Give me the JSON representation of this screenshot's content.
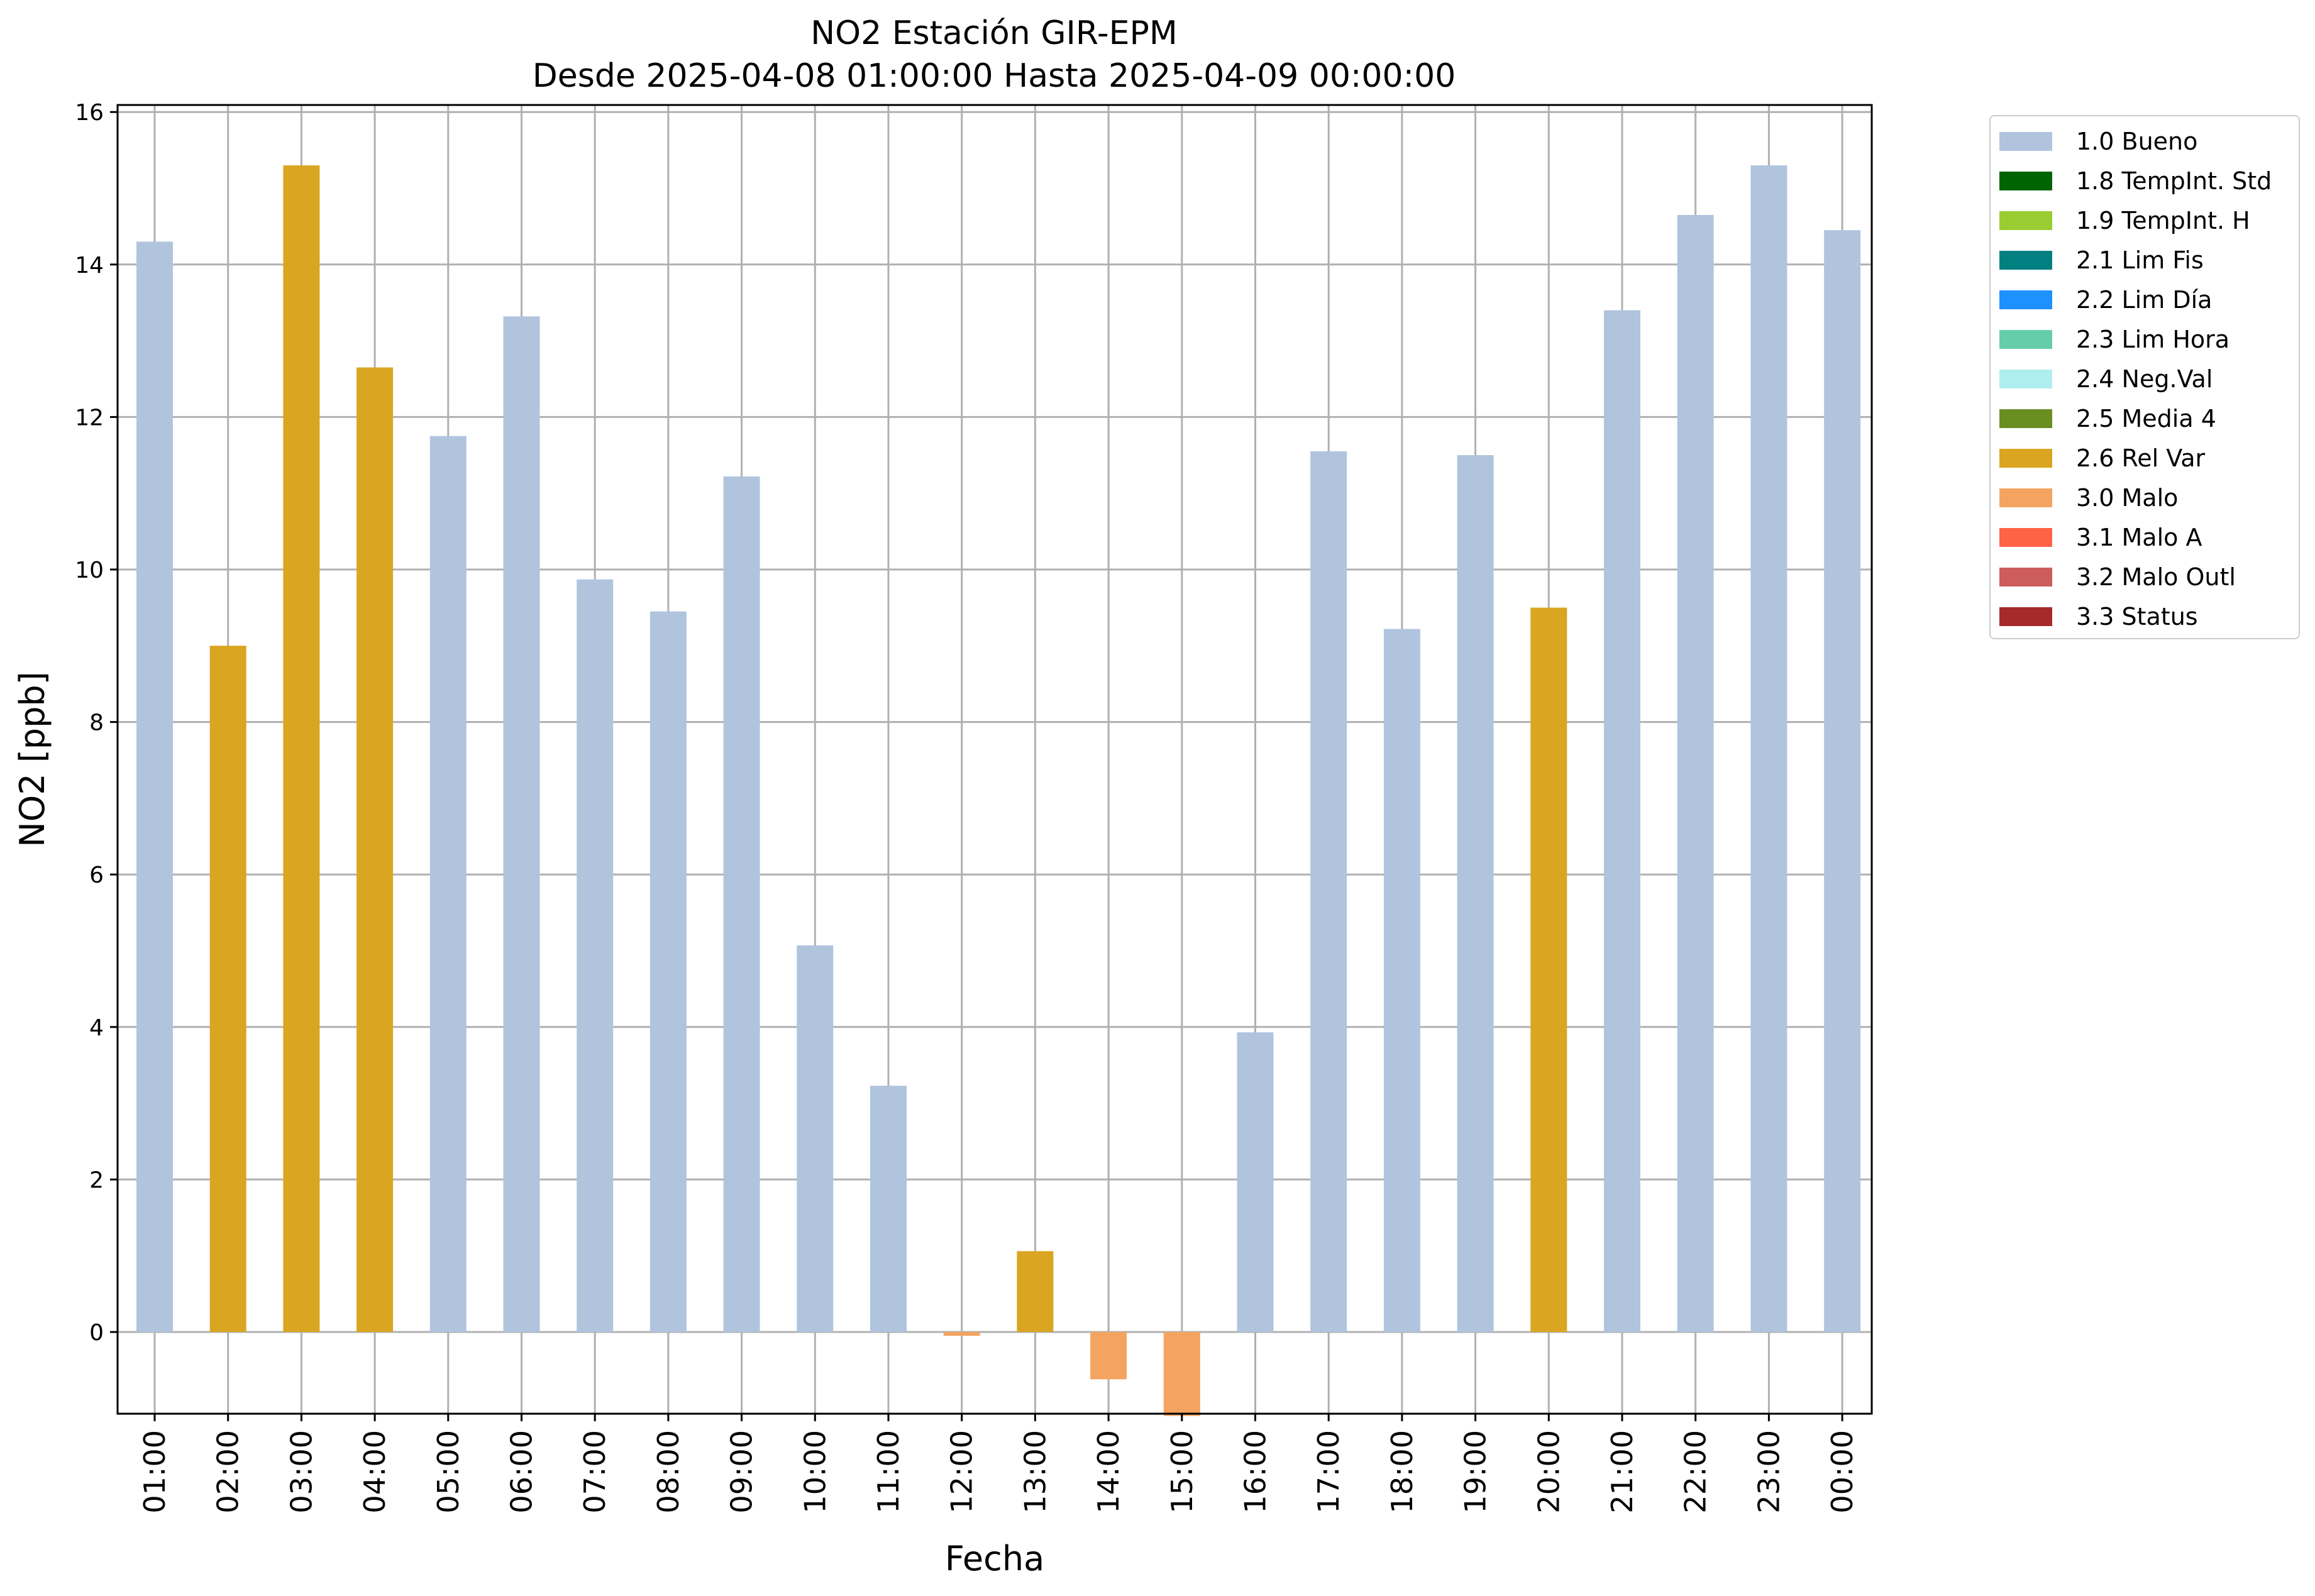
{
  "chart_data": {
    "type": "bar",
    "title": "NO2 Estación GIR-EPM",
    "subtitle": "Desde 2025-04-08 01:00:00 Hasta 2025-04-09 00:00:00",
    "xlabel": "Fecha",
    "ylabel": "NO2 [ppb]",
    "ylim": [
      -1.1,
      16.15
    ],
    "yticks": [
      0,
      2,
      4,
      6,
      8,
      10,
      12,
      14,
      16
    ],
    "grid": true,
    "legend_position": "outside-right",
    "categories": [
      "01:00",
      "02:00",
      "03:00",
      "04:00",
      "05:00",
      "06:00",
      "07:00",
      "08:00",
      "09:00",
      "10:00",
      "11:00",
      "12:00",
      "13:00",
      "14:00",
      "15:00",
      "16:00",
      "17:00",
      "18:00",
      "19:00",
      "20:00",
      "21:00",
      "22:00",
      "23:00",
      "00:00"
    ],
    "values": [
      14.3,
      9.0,
      15.3,
      12.65,
      11.75,
      13.32,
      9.87,
      9.45,
      11.22,
      5.07,
      3.23,
      -0.05,
      1.06,
      -0.62,
      -1.1,
      3.93,
      11.55,
      9.22,
      11.5,
      9.5,
      13.4,
      14.65,
      15.3,
      14.45
    ],
    "flags": [
      "1.0 Bueno",
      "2.6 Rel Var",
      "2.6 Rel Var",
      "2.6 Rel Var",
      "1.0 Bueno",
      "1.0 Bueno",
      "1.0 Bueno",
      "1.0 Bueno",
      "1.0 Bueno",
      "1.0 Bueno",
      "1.0 Bueno",
      "3.0 Malo",
      "2.6 Rel Var",
      "3.0 Malo",
      "3.0 Malo",
      "1.0 Bueno",
      "1.0 Bueno",
      "1.0 Bueno",
      "1.0 Bueno",
      "2.6 Rel Var",
      "1.0 Bueno",
      "1.0 Bueno",
      "1.0 Bueno",
      "1.0 Bueno"
    ],
    "legend": [
      {
        "label": "1.0 Bueno",
        "color": "#b0c4de"
      },
      {
        "label": "1.8 TempInt. Std",
        "color": "#006400"
      },
      {
        "label": "1.9 TempInt. H",
        "color": "#9acd32"
      },
      {
        "label": "2.1 Lim Fis",
        "color": "#008080"
      },
      {
        "label": "2.2 Lim Día",
        "color": "#1e90ff"
      },
      {
        "label": "2.3 Lim Hora",
        "color": "#66cdaa"
      },
      {
        "label": "2.4 Neg.Val",
        "color": "#afeeee"
      },
      {
        "label": "2.5 Media 4",
        "color": "#6b8e23"
      },
      {
        "label": "2.6 Rel Var",
        "color": "#daa520"
      },
      {
        "label": "3.0 Malo",
        "color": "#f4a460"
      },
      {
        "label": "3.1 Malo A",
        "color": "#ff6347"
      },
      {
        "label": "3.2 Malo Outl",
        "color": "#cd5c5c"
      },
      {
        "label": "3.3 Status",
        "color": "#a52a2a"
      }
    ]
  }
}
